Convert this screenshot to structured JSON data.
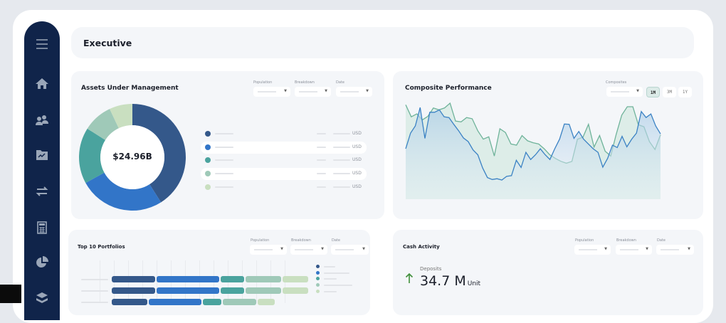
{
  "header": {
    "title": "Executive"
  },
  "sidebar": {
    "icons": [
      "menu-icon",
      "home-icon",
      "users-icon",
      "folder-chart-icon",
      "transfer-icon",
      "calculator-icon",
      "pie-chart-icon",
      "layers-icon"
    ]
  },
  "colors": {
    "navy": "#10244a",
    "s1": "#34588a",
    "s2": "#3275c8",
    "s3": "#4aa39e",
    "s4": "#9fc9b8",
    "s5": "#c9dfc0",
    "green_line": "#6fb39a",
    "blue_line": "#3b82c4",
    "up_arrow": "#3f8f3a"
  },
  "aum": {
    "title": "Assets Under Management",
    "filters": [
      {
        "label": "Population"
      },
      {
        "label": "Breakdown"
      },
      {
        "label": "Date"
      }
    ],
    "total": "$24.96B",
    "legend": [
      {
        "unit": "USD"
      },
      {
        "unit": "USD"
      },
      {
        "unit": "USD"
      },
      {
        "unit": "USD"
      },
      {
        "unit": "USD"
      }
    ]
  },
  "composite": {
    "title": "Composite Performance",
    "filter_label": "Composites",
    "ranges": [
      "1M",
      "3M",
      "1Y"
    ],
    "active_range": "1M"
  },
  "top10": {
    "title": "Top 10 Portfolios",
    "filters": [
      {
        "label": "Population"
      },
      {
        "label": "Breakdown"
      },
      {
        "label": "Date"
      }
    ]
  },
  "cash": {
    "title": "Cash Activity",
    "filters": [
      {
        "label": "Population"
      },
      {
        "label": "Breakdown"
      },
      {
        "label": "Date"
      }
    ],
    "deposits_label": "Deposits",
    "deposits_value": "34.7 M",
    "deposits_unit": "Unit"
  },
  "chart_data": [
    {
      "type": "pie",
      "values": [
        41,
        26,
        17,
        9,
        7
      ],
      "center_label": "$24.96B"
    },
    {
      "type": "line",
      "series": [
        {
          "values": [
            52.5,
            68.8,
            76.3,
            95.5,
            63.3,
            90.5,
            90.5,
            93,
            85.8,
            85,
            78,
            71.3,
            63.8,
            60,
            51.3,
            46.3,
            32.5,
            22.5,
            20.5,
            21.3,
            20,
            23.8,
            24.5,
            40.5,
            33,
            48.8,
            41.3,
            46.3,
            52.5,
            46.3,
            41.3,
            52.5,
            62.5,
            78.3,
            78,
            63.3,
            70.5,
            62.5,
            57.5,
            52.5,
            48.8,
            33.3,
            42.5,
            56.3,
            53.8,
            65.5,
            54.5,
            62.5,
            68.8,
            91.3,
            85,
            88.8,
            76.3,
            68
          ]
        },
        {
          "values": [
            98.3,
            85.8,
            88.8,
            82.5,
            86.3,
            95,
            93,
            95,
            100,
            81.3,
            80.5,
            85,
            83.8,
            71.3,
            62.5,
            65,
            45,
            73.3,
            69.5,
            57.5,
            56.3,
            66.3,
            60.8,
            58.8,
            57.5,
            52.5,
            46.3,
            42.5,
            39.5,
            37.5,
            39.3,
            62.5,
            64.5,
            78,
            54.3,
            66.3,
            50,
            45,
            67.5,
            87.5,
            96.3,
            96.3,
            77.5,
            75.5,
            60,
            51.8,
            67
          ]
        }
      ],
      "ylim": [
        0,
        100
      ]
    },
    {
      "type": "bar",
      "orientation": "horizontal",
      "stacked": true,
      "series_count": 5,
      "rows": [
        [
          61,
          88,
          33,
          50,
          36
        ],
        [
          61,
          88,
          33,
          50,
          36
        ],
        [
          50,
          74,
          26,
          47,
          24
        ]
      ]
    }
  ]
}
